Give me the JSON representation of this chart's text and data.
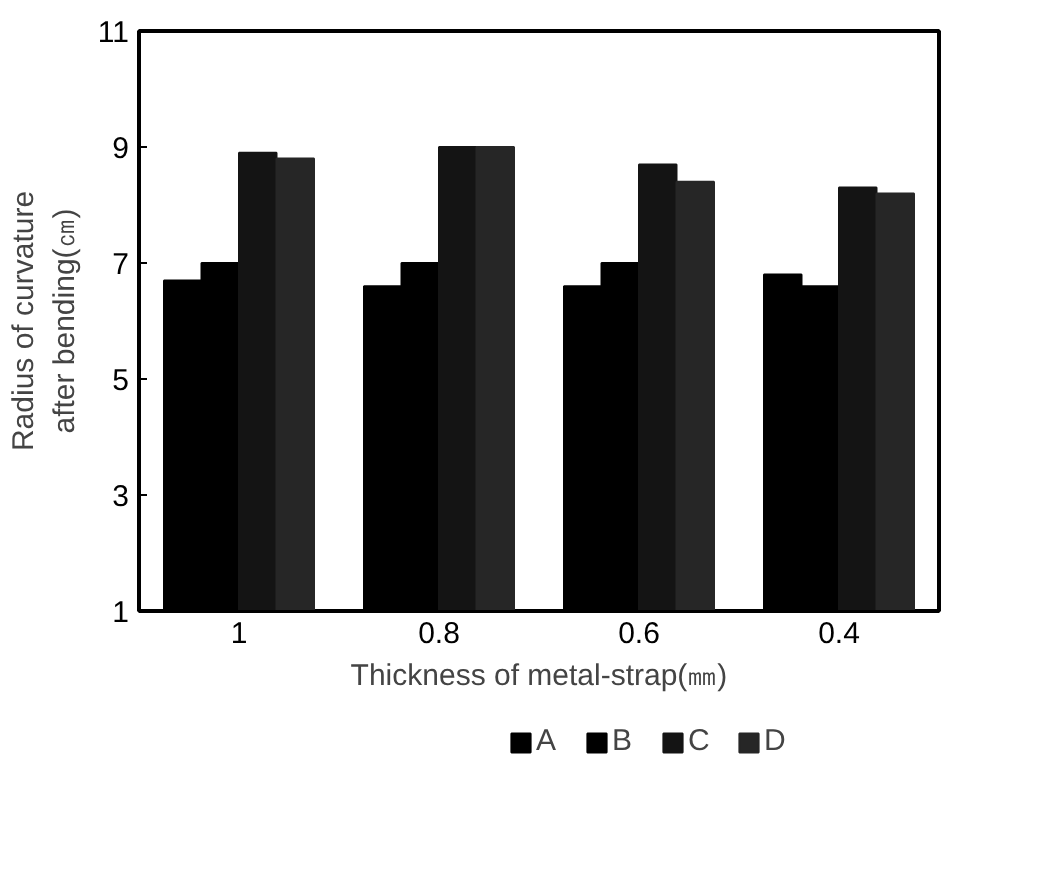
{
  "chart_data": {
    "type": "bar",
    "xlabel": "Thickness of metal-strap(㎜)",
    "ylabel": "Radius of curvature\nafter bending(㎝)",
    "categories": [
      "1",
      "0.8",
      "0.6",
      "0.4"
    ],
    "series": [
      {
        "name": "A",
        "color": "#000000",
        "values": [
          6.7,
          6.6,
          6.6,
          6.8
        ]
      },
      {
        "name": "B",
        "color": "#000000",
        "values": [
          7.0,
          7.0,
          7.0,
          6.6
        ]
      },
      {
        "name": "C",
        "color": "#141414",
        "values": [
          8.9,
          9.0,
          8.7,
          8.3
        ]
      },
      {
        "name": "D",
        "color": "#262626",
        "values": [
          8.8,
          9.0,
          8.4,
          8.2
        ]
      }
    ],
    "ylim": [
      1,
      11
    ],
    "yticks": [
      1,
      3,
      5,
      7,
      9,
      11
    ],
    "grid": false,
    "legend": "bottom"
  }
}
